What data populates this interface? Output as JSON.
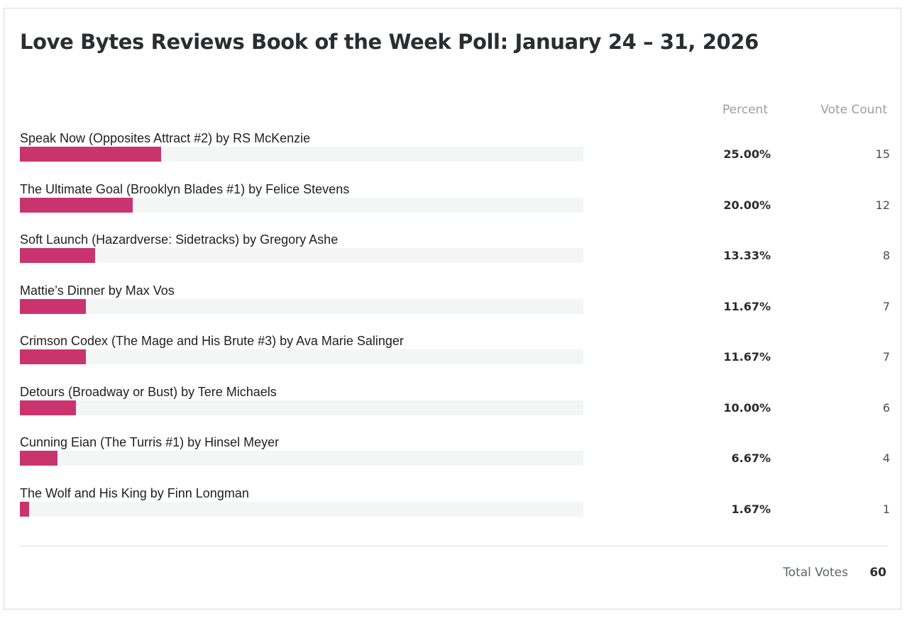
{
  "poll": {
    "title": "Love Bytes Reviews Book of the Week Poll: January 24 – 31, 2026",
    "headers": {
      "percent": "Percent",
      "votes": "Vote Count"
    },
    "accent_color": "#c9346f",
    "answers": [
      {
        "label": "Speak Now (Opposites Attract #2) by RS McKenzie",
        "percent": "25.00%",
        "votes": "15",
        "share": 0.25
      },
      {
        "label": "The Ultimate Goal (Brooklyn Blades #1) by Felice Stevens",
        "percent": "20.00%",
        "votes": "12",
        "share": 0.2
      },
      {
        "label": "Soft Launch (Hazardverse: Sidetracks) by Gregory Ashe",
        "percent": "13.33%",
        "votes": "8",
        "share": 0.1333
      },
      {
        "label": "Mattie’s Dinner by Max Vos",
        "percent": "11.67%",
        "votes": "7",
        "share": 0.1167
      },
      {
        "label": "Crimson Codex (The Mage and His Brute #3) by Ava Marie Salinger",
        "percent": "11.67%",
        "votes": "7",
        "share": 0.1167
      },
      {
        "label": "Detours (Broadway or Bust) by Tere Michaels",
        "percent": "10.00%",
        "votes": "6",
        "share": 0.1
      },
      {
        "label": "Cunning Eian (The Turris #1) by Hinsel Meyer",
        "percent": "6.67%",
        "votes": "4",
        "share": 0.0667
      },
      {
        "label": "The Wolf and His King by Finn Longman",
        "percent": "1.67%",
        "votes": "1",
        "share": 0.0167
      }
    ],
    "total_label": "Total Votes",
    "total_value": "60"
  }
}
